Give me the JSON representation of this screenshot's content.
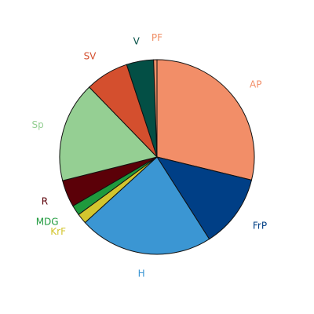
{
  "chart_data": {
    "type": "pie",
    "title": "",
    "start_angle_deg": -90,
    "direction": "clockwise",
    "legend": "none",
    "slices": [
      {
        "label": "AP",
        "value": 30.8,
        "color": "#f28e68"
      },
      {
        "label": "FrP",
        "value": 13.0,
        "color": "#003f86"
      },
      {
        "label": "H",
        "value": 23.8,
        "color": "#3b96d3"
      },
      {
        "label": "KrF",
        "value": 1.8,
        "color": "#d3c52e"
      },
      {
        "label": "MDG",
        "value": 1.8,
        "color": "#1f9a3d"
      },
      {
        "label": "R",
        "value": 4.8,
        "color": "#5b0008"
      },
      {
        "label": "Sp",
        "value": 17.8,
        "color": "#95cf93"
      },
      {
        "label": "SV",
        "value": 7.7,
        "color": "#d44f2e"
      },
      {
        "label": "V",
        "value": 4.8,
        "color": "#034f45"
      },
      {
        "label": "PF",
        "value": 0.6,
        "color": "#ef8f67"
      }
    ]
  }
}
